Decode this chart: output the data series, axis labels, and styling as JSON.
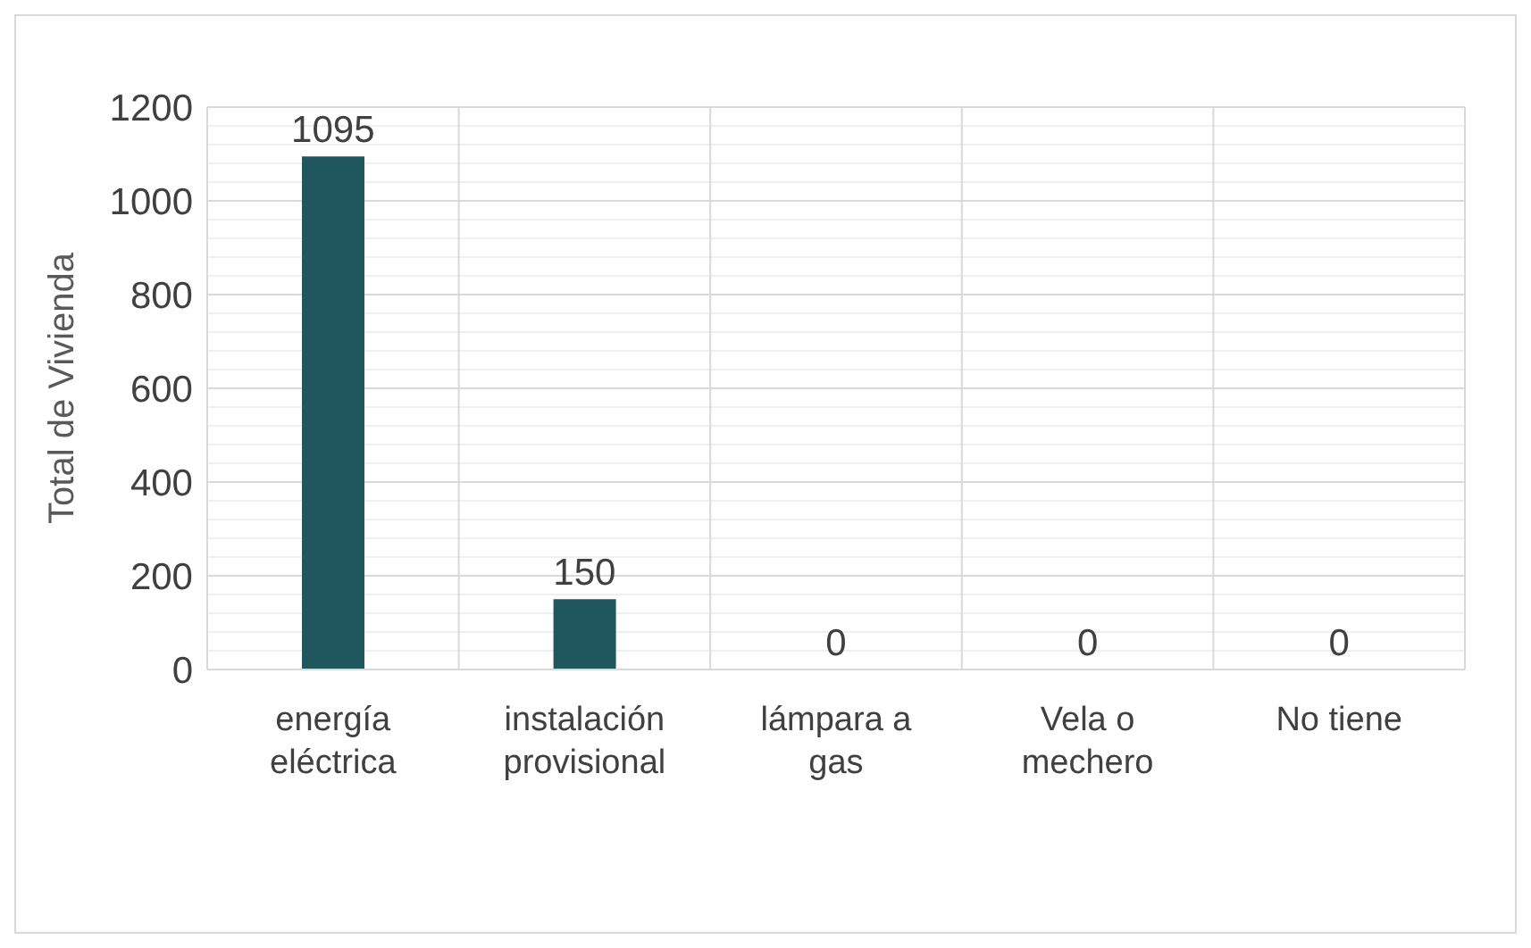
{
  "chart_data": {
    "type": "bar",
    "ylabel": "Total de Vivienda",
    "categories": [
      "energía eléctrica",
      "instalación provisional",
      "lámpara a gas",
      "Vela o mechero",
      "No tiene"
    ],
    "values": [
      1095,
      150,
      0,
      0,
      0
    ],
    "color": "#20575f",
    "ylim": [
      0,
      1200
    ],
    "yticks": [
      0,
      200,
      400,
      600,
      800,
      1000,
      1200
    ],
    "grid": true,
    "data_labels": true
  }
}
